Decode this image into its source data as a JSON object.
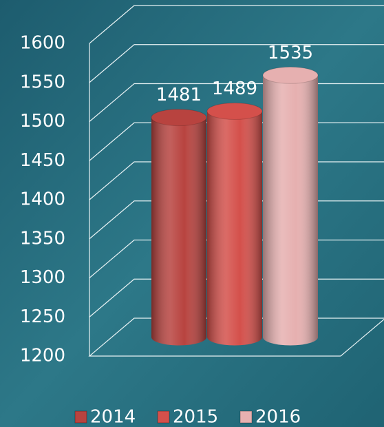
{
  "chart_data": {
    "type": "cylinder-bar",
    "categories": [
      null
    ],
    "series": [
      {
        "name": "2014",
        "color": "#b8433f",
        "values": [
          1481
        ]
      },
      {
        "name": "2015",
        "color": "#d4504b",
        "values": [
          1489
        ]
      },
      {
        "name": "2016",
        "color": "#e6b0b0",
        "values": [
          1535
        ]
      }
    ],
    "ylim": [
      1200,
      1600
    ],
    "yticks": [
      1200,
      1250,
      1300,
      1350,
      1400,
      1450,
      1500,
      1550,
      1600
    ],
    "grid": true,
    "legend": "bottom"
  }
}
